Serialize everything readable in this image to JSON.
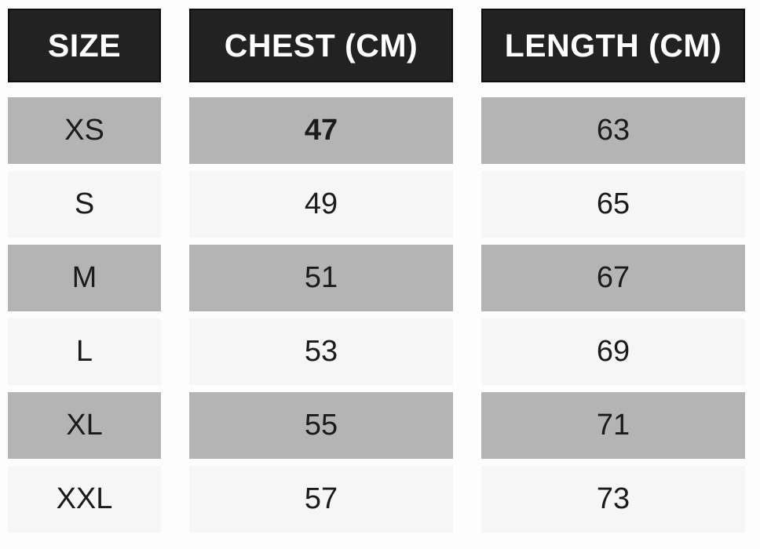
{
  "chart_data": {
    "type": "table",
    "columns": [
      "SIZE",
      "CHEST (CM)",
      "LENGTH (CM)"
    ],
    "rows": [
      [
        "XS",
        "47",
        "63"
      ],
      [
        "S",
        "49",
        "65"
      ],
      [
        "M",
        "51",
        "67"
      ],
      [
        "L",
        "53",
        "69"
      ],
      [
        "XL",
        "55",
        "71"
      ],
      [
        "XXL",
        "57",
        "73"
      ]
    ]
  },
  "colors": {
    "header_bg": "#222222",
    "header_border": "#0d0d0d",
    "header_text": "#ffffff",
    "row_shaded_bg": "#b4b4b4",
    "row_light_bg": "#f6f6f6",
    "cell_text": "#1b1b1b",
    "page_bg": "#fdfdfd"
  }
}
